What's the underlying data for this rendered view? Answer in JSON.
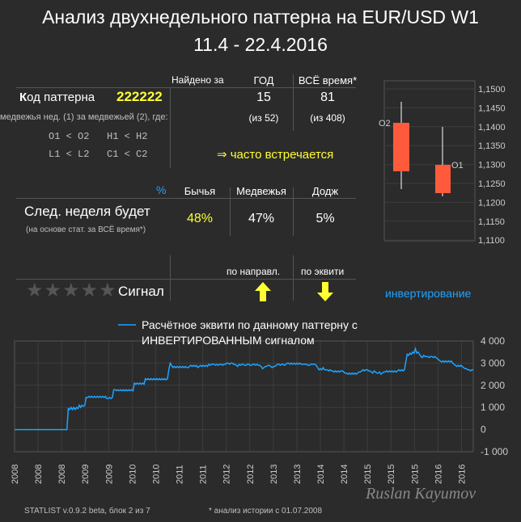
{
  "title": {
    "line1": "Анализ двухнедельного паттерна на EUR/USD W1",
    "line2": "11.4 - 22.4.2016"
  },
  "table": {
    "found_for": "Найдено за",
    "year": "ГОД",
    "all_time": "ВСЁ время*",
    "code_label_k": "К",
    "code_label_rest": "од паттерна",
    "code_value": "222222",
    "year_count": "15",
    "all_count": "81",
    "desc_line": "медвежья нед. (1) за медвежьей (2), где:",
    "year_of": "(из 52)",
    "all_of": "(из 408)",
    "cond1": "O1 < O2   H1 < H2",
    "cond2": "L1 < L2   C1 < C2",
    "often": "⇒ часто встречается",
    "pct_symbol": "%",
    "bull": "Бычья",
    "bear": "Медвежья",
    "doji": "Додж",
    "next_week": "След. неделя будет",
    "next_note": "(на основе стат. за ВСЁ время*)",
    "bull_pct": "48%",
    "bear_pct": "47%",
    "doji_pct": "5%",
    "by_dir": "по направл.",
    "by_equity": "по эквити",
    "stars": "★★★★★",
    "signal": "Сигнал",
    "inversion": "инвертирование"
  },
  "candles": {
    "label_o2": "O2",
    "label_o1": "O1",
    "price_ticks": [
      "1,1500",
      "1,1450",
      "1,1400",
      "1,1350",
      "1,1300",
      "1,1250",
      "1,1200",
      "1,1150",
      "1,1100"
    ],
    "colors": {
      "body": "#ff5a3c",
      "wick": "#ffffff"
    }
  },
  "chart_data": {
    "type": "line",
    "title": "",
    "legend": "Расчётное эквити по данному паттерну с ИНВЕРТИРОВАННЫМ сигналом",
    "legend_line1": "Расчётное эквити по данному паттерну с",
    "legend_line2": "ИНВЕРТИРОВАННЫМ сигналом",
    "y_ticks": [
      "4 000",
      "3 000",
      "2 000",
      "1 000",
      "0",
      "-1 000"
    ],
    "ylim": [
      -1000,
      4000
    ],
    "x_tick_labels": [
      "2008",
      "2008",
      "2008",
      "2009",
      "2009",
      "2010",
      "2010",
      "2011",
      "2011",
      "2012",
      "2012",
      "2013",
      "2013",
      "2014",
      "2014",
      "2015",
      "2015",
      "2015",
      "2016",
      "2016"
    ],
    "color": "#1ea3ff",
    "grid": true,
    "series": [
      {
        "values": [
          0,
          0,
          0,
          0,
          0,
          0,
          0,
          0,
          0,
          0,
          0,
          0,
          0,
          0,
          0,
          0,
          0,
          0,
          0,
          0,
          0,
          0,
          0,
          0,
          0,
          0,
          0,
          0,
          0,
          0,
          0,
          0,
          0,
          0,
          0,
          0,
          0,
          0,
          0,
          950,
          900,
          1000,
          900,
          1000,
          900,
          1000,
          950,
          1100,
          1000,
          1100,
          1050,
          1100,
          1450,
          1450,
          1500,
          1450,
          1500,
          1450,
          1500,
          1450,
          1500,
          1450,
          1500,
          1450,
          1500,
          1450,
          1500,
          1400,
          1400,
          1450,
          1400,
          1450,
          1800,
          1800,
          1750,
          1800,
          1750,
          1800,
          1750,
          1800,
          1750,
          1800,
          1750,
          1800,
          1750,
          1800,
          1750,
          2100,
          2050,
          2100,
          2050,
          2100,
          2050,
          2100,
          2050,
          2300,
          2250,
          2300,
          2250,
          2300,
          2250,
          2300,
          2250,
          2300,
          2250,
          2300,
          2250,
          2300,
          2250,
          2300,
          2250,
          2300,
          2700,
          3000,
          2900,
          2800,
          2850,
          2800,
          2850,
          2800,
          2850,
          2800,
          2850,
          2800,
          2850,
          2800,
          2800,
          2850,
          2900,
          2850,
          2900,
          2850,
          2900,
          2800,
          2850,
          2900,
          2850,
          2900,
          2850,
          2900,
          2850,
          2950,
          2900,
          2950,
          2950,
          2950,
          2900,
          2950,
          2900,
          2950,
          2950,
          2900,
          2950,
          2950,
          3000,
          3000,
          2950,
          3000,
          3000,
          2950,
          2950,
          2900,
          2850,
          2950,
          2900,
          2950,
          2950,
          2900,
          2900,
          2950,
          2950,
          2900,
          2900,
          2950,
          2950,
          2900,
          2950,
          2900,
          2900,
          2850,
          2750,
          2800,
          2850,
          2850,
          2900,
          2900,
          2850,
          2800,
          2850,
          2850,
          2900,
          2950,
          2950,
          2900,
          2950,
          2950,
          2900,
          2950,
          3000,
          3000,
          2950,
          3000,
          2950,
          3000,
          2950,
          3000,
          2950,
          3000,
          2950,
          2950,
          2950,
          2950,
          2950,
          2900,
          2900,
          2950,
          2950,
          2950,
          2950,
          2900,
          2800,
          2700,
          2750,
          2700,
          2800,
          2700,
          2700,
          2700,
          2650,
          2700,
          2650,
          2650,
          2600,
          2650,
          2600,
          2650,
          2600,
          2650,
          2650,
          2600,
          2550,
          2550,
          2500,
          2550,
          2500,
          2550,
          2500,
          2550,
          2500,
          2550,
          2600,
          2600,
          2650,
          2700,
          2650,
          2700,
          2700,
          2650,
          2650,
          2600,
          2550,
          2650,
          2600,
          2550,
          2550,
          2600,
          2500,
          2550,
          2600,
          2600,
          2650,
          2600,
          2650,
          2600,
          2650,
          2600,
          2650,
          2600,
          2650,
          2700,
          2650,
          2700,
          2650,
          2700,
          3050,
          3400,
          3350,
          3450,
          3400,
          3500,
          3450,
          3650,
          3450,
          3500,
          3400,
          3300,
          3250,
          3350,
          3300,
          3300,
          3300,
          3250,
          3300,
          3300,
          3250,
          3300,
          3250,
          3200,
          3150,
          3100,
          3050,
          3100,
          3050,
          3100,
          3050,
          3100,
          3050,
          3100,
          3000,
          2950,
          2900,
          2850,
          2900,
          2850,
          2900,
          2850,
          2800,
          2750,
          2750,
          2700,
          2700,
          2650,
          2700,
          2700
        ]
      }
    ]
  },
  "footer": {
    "version": "STATLIST v.0.9.2 beta, блок 2 из 7",
    "note": "* анализ истории с 01.07.2008",
    "signature": "Ruslan Kayumov"
  }
}
